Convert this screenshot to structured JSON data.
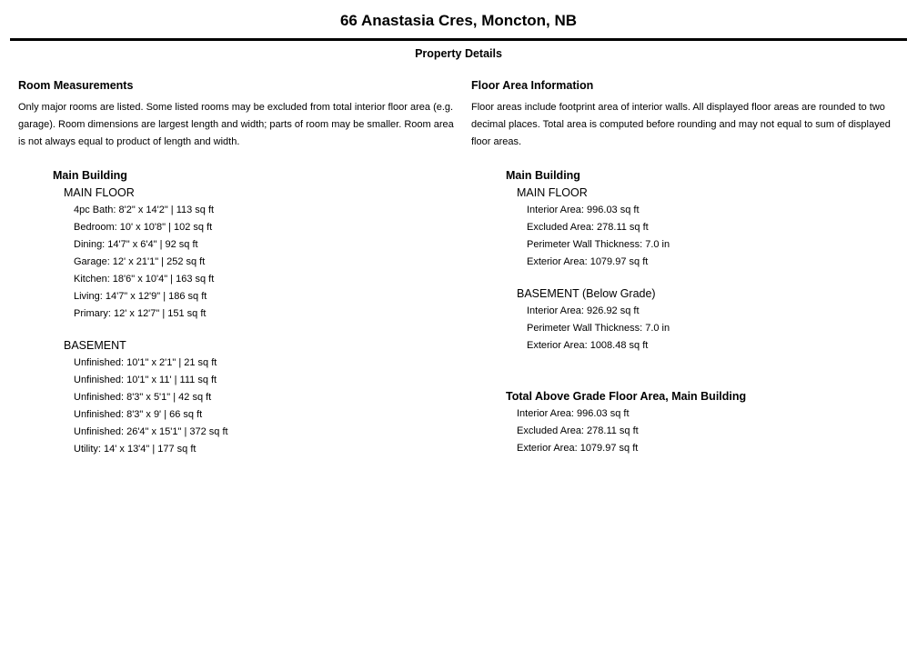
{
  "header": {
    "title": "66 Anastasia Cres, Moncton, NB",
    "subtitle": "Property Details"
  },
  "rooms": {
    "heading": "Room Measurements",
    "description": "Only major rooms are listed. Some listed rooms may be excluded from total interior floor area (e.g. garage). Room dimensions are largest length and width; parts of room may be smaller. Room area is not always equal to product of length and width.",
    "building_name": "Main Building",
    "main_floor_label": "MAIN FLOOR",
    "main_floor_rooms": [
      "4pc Bath: 8'2\" x 14'2\" | 113 sq ft",
      "Bedroom: 10' x 10'8\" | 102 sq ft",
      "Dining: 14'7\" x 6'4\" | 92 sq ft",
      "Garage: 12' x 21'1\" | 252 sq ft",
      "Kitchen: 18'6\" x 10'4\" | 163 sq ft",
      "Living: 14'7\" x 12'9\" | 186 sq ft",
      "Primary: 12' x 12'7\" | 151 sq ft"
    ],
    "basement_label": "BASEMENT",
    "basement_rooms": [
      "Unfinished: 10'1\" x 2'1\" | 21 sq ft",
      "Unfinished: 10'1\" x 11' | 111 sq ft",
      "Unfinished: 8'3\" x 5'1\" | 42 sq ft",
      "Unfinished: 8'3\" x 9' | 66 sq ft",
      "Unfinished: 26'4\" x 15'1\" | 372 sq ft",
      "Utility: 14' x 13'4\" | 177 sq ft"
    ]
  },
  "areas": {
    "heading": "Floor Area Information",
    "description": "Floor areas include footprint area of interior walls. All displayed floor areas are rounded to two decimal places. Total area is computed before rounding and may not equal to sum of displayed floor areas.",
    "building_name": "Main Building",
    "main_floor_label": "MAIN FLOOR",
    "main_floor_items": [
      "Interior Area: 996.03 sq ft",
      "Excluded Area: 278.11 sq ft",
      "Perimeter Wall Thickness: 7.0 in",
      "Exterior Area: 1079.97 sq ft"
    ],
    "basement_label": "BASEMENT (Below Grade)",
    "basement_items": [
      "Interior Area: 926.92 sq ft",
      "Perimeter Wall Thickness: 7.0 in",
      "Exterior Area: 1008.48 sq ft"
    ],
    "total_heading": "Total Above Grade Floor Area, Main Building",
    "total_items": [
      "Interior Area: 996.03 sq ft",
      "Excluded Area: 278.11 sq ft",
      "Exterior Area: 1079.97 sq ft"
    ]
  }
}
